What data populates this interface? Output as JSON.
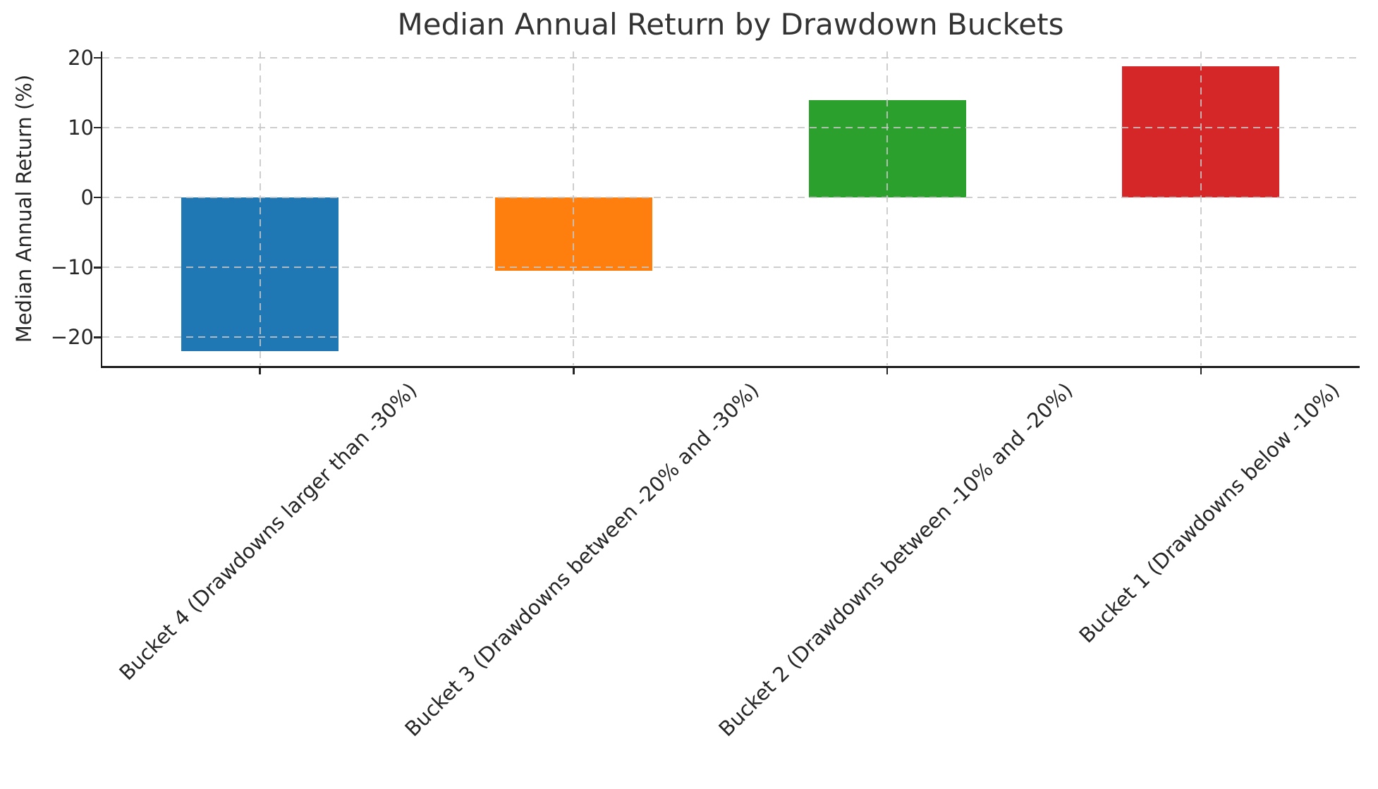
{
  "title": "Median Annual Return by Drawdown Buckets",
  "chart_data": {
    "type": "bar",
    "title": "Median Annual Return by Drawdown Buckets",
    "xlabel": "",
    "ylabel": "Median Annual Return (%)",
    "categories": [
      "Bucket 4 (Drawdowns larger than -30%)",
      "Bucket 3 (Drawdowns between -20% and -30%)",
      "Bucket 2 (Drawdowns between -10% and -20%)",
      "Bucket 1 (Drawdowns below -10%)"
    ],
    "values": [
      -22.0,
      -10.5,
      13.9,
      18.8
    ],
    "bar_colors": [
      "#1f77b4",
      "#ff7f0e",
      "#2ca02c",
      "#d62728"
    ],
    "yticks": [
      20,
      10,
      0,
      -10,
      -20
    ],
    "ylim": [
      -24.1,
      20.9
    ],
    "grid": "dashed, light gray, horizontal at yticks and vertical at each category, drawn above bars",
    "legend_position": "none",
    "spines": "left and bottom only",
    "xtick_label_rotation_deg": 45
  },
  "colors": {
    "background": "#ffffff",
    "grid": "#c6c6c6",
    "spine": "#1a1a1a",
    "text": "#262626",
    "title_text": "#333333"
  }
}
